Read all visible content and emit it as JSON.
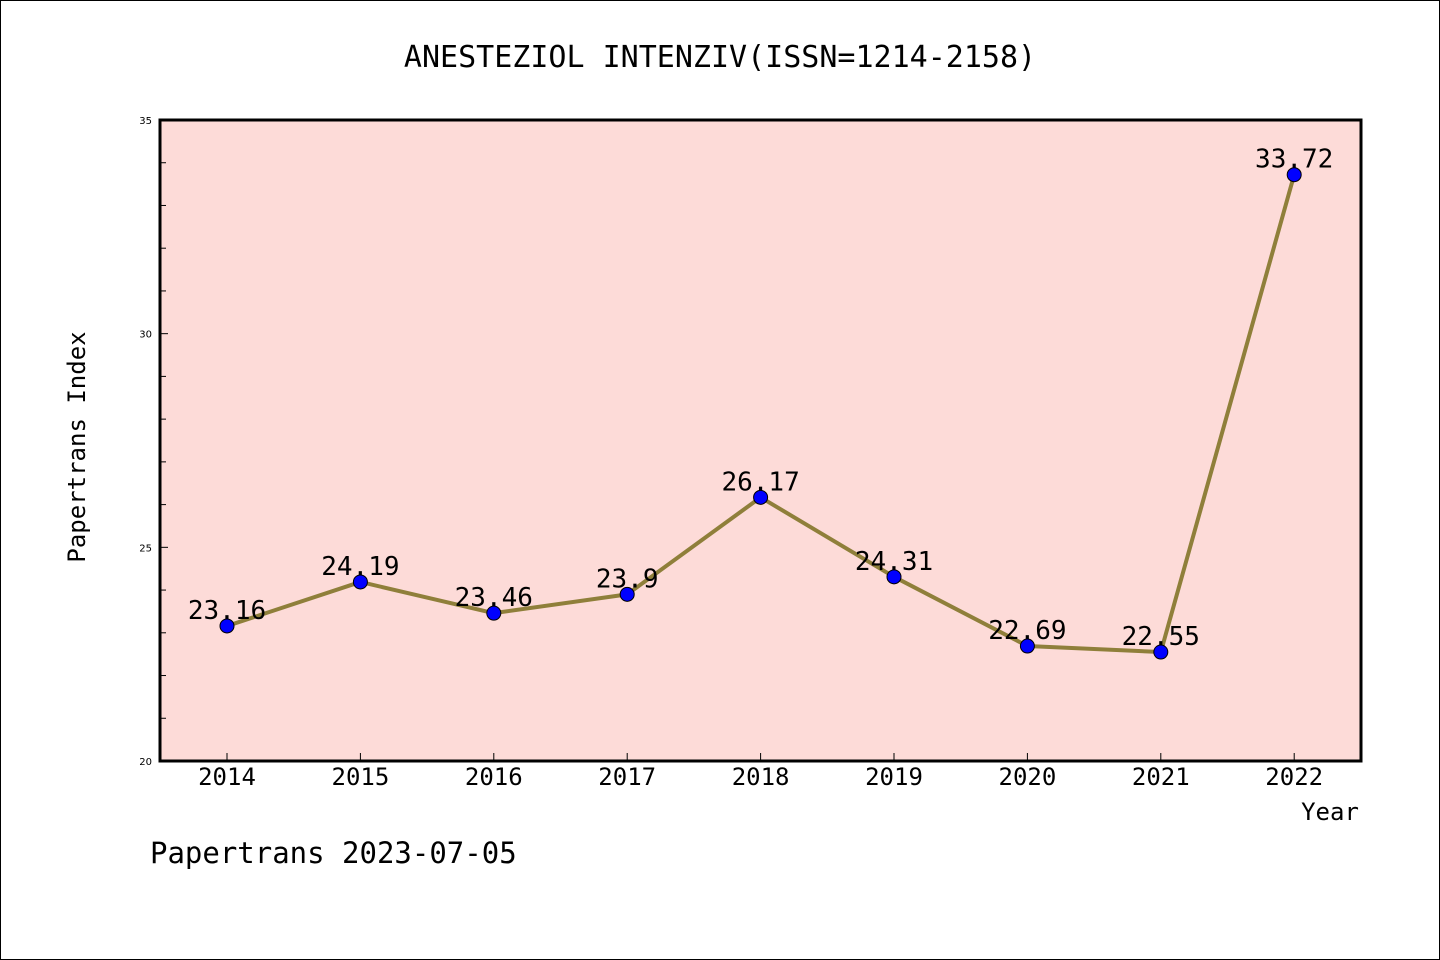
{
  "chart_data": {
    "type": "line",
    "title": "ANESTEZIOL INTENZIV(ISSN=1214-2158)",
    "xlabel": "Year",
    "ylabel": "Papertrans Index",
    "categories": [
      "2014",
      "2015",
      "2016",
      "2017",
      "2018",
      "2019",
      "2020",
      "2021",
      "2022"
    ],
    "series": [
      {
        "values": [
          23.16,
          24.19,
          23.46,
          23.9,
          26.17,
          24.31,
          22.69,
          22.55,
          33.72
        ],
        "labels": [
          "23.16",
          "24.19",
          "23.46",
          "23.9",
          "26.17",
          "24.31",
          "22.69",
          "22.55",
          "33.72"
        ],
        "line_color": "#8f7f3a",
        "marker_color": "#0000ff"
      }
    ],
    "ylim": [
      20,
      35
    ],
    "yticks": [
      "20",
      "25",
      "30",
      "35"
    ],
    "plot_background": "#fddbd8",
    "grid": false,
    "legend": "none"
  },
  "footer": "Papertrans 2023-07-05"
}
